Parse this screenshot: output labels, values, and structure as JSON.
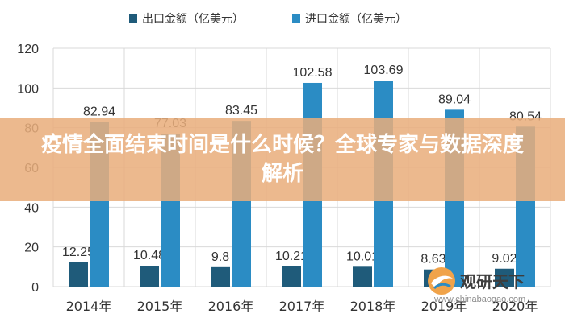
{
  "chart_data": {
    "type": "bar",
    "categories": [
      "2014年",
      "2015年",
      "2016年",
      "2017年",
      "2018年",
      "2019年",
      "2020年"
    ],
    "series": [
      {
        "name": "出口金额（亿美元）",
        "values": [
          12.25,
          10.48,
          9.8,
          10.21,
          10.01,
          8.63,
          9.02
        ],
        "color": "#1f5b7a"
      },
      {
        "name": "进口金额（亿美元）",
        "values": [
          82.94,
          77.03,
          83.45,
          102.58,
          103.69,
          89.04,
          80.54
        ],
        "color": "#2b8cc4"
      }
    ],
    "ylim": [
      0,
      120
    ],
    "yticks": [
      0,
      20,
      40,
      60,
      80,
      100,
      120
    ],
    "grid": true,
    "legend_position": "top-center",
    "data_labels": true
  },
  "overlay": {
    "title": "疫情全面结束时间是什么时候？全球专家与数据深度解析",
    "background_color": "#e9ae7c",
    "text_color": "#ffffff"
  },
  "watermark": {
    "brand": "观研天下",
    "url": "www.chinabaogao.com"
  },
  "colors": {
    "grid": "#d9d9d9",
    "axis_text": "#333333",
    "label_text": "#333333"
  }
}
